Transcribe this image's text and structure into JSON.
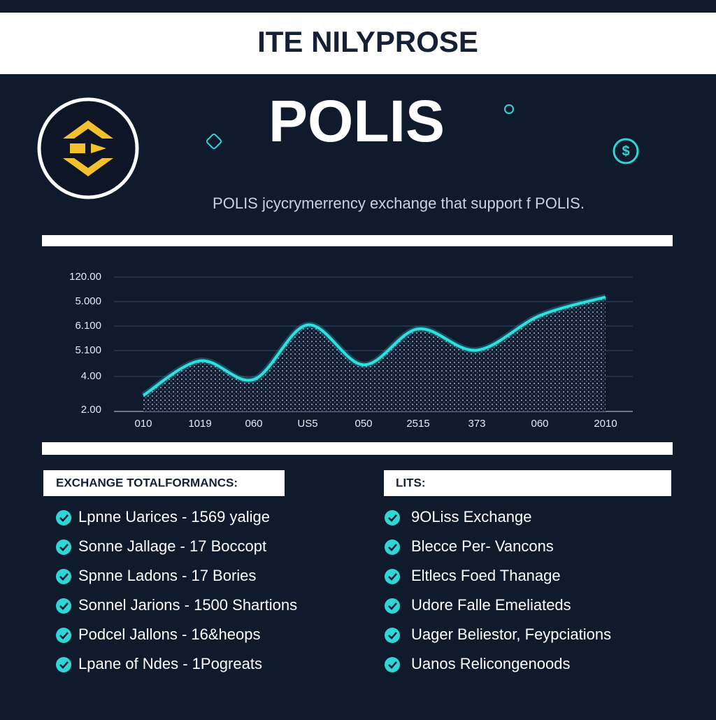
{
  "header": {
    "title": "ITE NILYPROSE"
  },
  "brand": {
    "name": "POLIS",
    "tagline": "POLIS jcycrymerrency exchange that support f POLIS."
  },
  "chart_data": {
    "type": "line",
    "y_labels": [
      "120.00",
      "5.000",
      "6.100",
      "5.100",
      "4.00",
      "2.00"
    ],
    "categories": [
      "010",
      "1019",
      "060",
      "US5",
      "050",
      "2515",
      "373",
      "060",
      "2010"
    ],
    "values": [
      11,
      37,
      23,
      64,
      34,
      61,
      45,
      71,
      85
    ],
    "ylim": [
      0,
      100
    ],
    "color": "#2fe0e0",
    "grid": true
  },
  "lists": [
    {
      "heading": "EXCHANGE TOTALFORMANCS:",
      "items": [
        "Lpnne Uarices - 1569 yalige",
        "Sonne Jallage - 17 Boccopt",
        "Spnne Ladons - 17 Bories",
        "Sonnel Jarions - 1500 Shartions",
        "Podcel Jallons - 16&heops",
        "Lpane of Ndes - 1Pogreats"
      ]
    },
    {
      "heading": "LITS:",
      "items": [
        "9OLiss Exchange",
        "Blecce Per- Vancons",
        "Eltlecs Foed Thanage",
        "Udore Falle Emeliateds",
        "Uager Beliestor, Feypciations",
        "Uanos Relicongenoods"
      ]
    }
  ]
}
